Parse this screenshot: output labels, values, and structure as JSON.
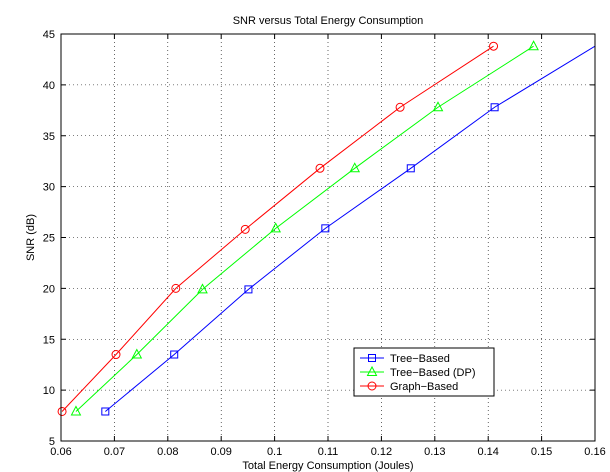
{
  "chart_data": {
    "type": "line",
    "title": "SNR versus Total Energy Consumption",
    "xlabel": "Total Energy Consumption (Joules)",
    "ylabel": "SNR (dB)",
    "xlim": [
      0.06,
      0.16
    ],
    "ylim": [
      5,
      45
    ],
    "xticks": [
      0.06,
      0.07,
      0.08,
      0.09,
      0.1,
      0.11,
      0.12,
      0.13,
      0.14,
      0.15,
      0.16
    ],
    "xtick_labels": [
      "0.06",
      "0.07",
      "0.08",
      "0.09",
      "0.1",
      "0.11",
      "0.12",
      "0.13",
      "0.14",
      "0.15",
      "0.16"
    ],
    "yticks": [
      5,
      10,
      15,
      20,
      25,
      30,
      35,
      40,
      45
    ],
    "ytick_labels": [
      "5",
      "10",
      "15",
      "20",
      "25",
      "30",
      "35",
      "40",
      "45"
    ],
    "grid": true,
    "legend_position": "bottom-right",
    "series": [
      {
        "name": "Tree−Based",
        "color": "#0000ff",
        "marker": "square",
        "x": [
          0.0683,
          0.0812,
          0.0951,
          0.1095,
          0.1255,
          0.1412
        ],
        "y": [
          7.9,
          13.5,
          19.9,
          25.9,
          31.8,
          37.8
        ],
        "extend_to": [
          0.16,
          43.8
        ]
      },
      {
        "name": "Tree−Based (DP)",
        "color": "#00ff00",
        "marker": "triangle",
        "x": [
          0.0628,
          0.0742,
          0.0865,
          0.1002,
          0.115,
          0.1306,
          0.1485
        ],
        "y": [
          7.9,
          13.5,
          19.9,
          25.9,
          31.8,
          37.8,
          43.8
        ]
      },
      {
        "name": "Graph−Based",
        "color": "#ff0000",
        "marker": "circle",
        "x": [
          0.0602,
          0.0703,
          0.0815,
          0.0945,
          0.1085,
          0.1235,
          0.141
        ],
        "y": [
          7.9,
          13.5,
          20.0,
          25.8,
          31.8,
          37.8,
          43.8
        ]
      }
    ]
  }
}
